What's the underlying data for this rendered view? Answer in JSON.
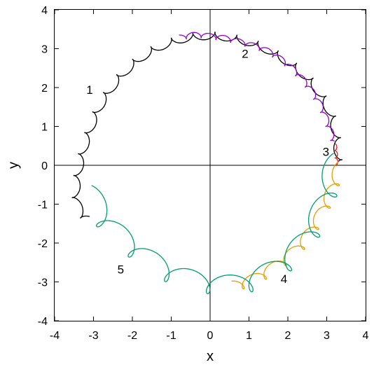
{
  "chart_data": {
    "type": "line",
    "title": "",
    "xlabel": "x",
    "ylabel": "y",
    "xlim": [
      -4,
      4
    ],
    "ylim": [
      -4,
      4
    ],
    "x_ticks": [
      -4,
      -3,
      -2,
      -1,
      0,
      1,
      2,
      3,
      4
    ],
    "y_ticks": [
      -4,
      -3,
      -2,
      -1,
      0,
      1,
      2,
      3,
      4
    ],
    "x_tick_labels": [
      "-4",
      "-3",
      "-2",
      "-1",
      "0",
      "1",
      "2",
      "3",
      "4"
    ],
    "y_tick_labels": [
      "-4",
      "-3",
      "-2",
      "-1",
      "0",
      "1",
      "2",
      "3",
      "4"
    ],
    "grid": false,
    "legend": "none",
    "zero_lines": true,
    "series": [
      {
        "name": "1",
        "color": "#000000",
        "loop_radius": 0.1,
        "loop_ratio": 0.9,
        "x": [
          3.3,
          3.25,
          3.05,
          2.6,
          1.95,
          1.2,
          0.4,
          -0.3,
          -0.9,
          -1.5,
          -2.05,
          -2.5,
          -2.85,
          -3.1,
          -3.3,
          -3.42,
          -3.45,
          -3.38,
          -3.25,
          -3.1
        ],
        "y": [
          0.0,
          0.75,
          1.45,
          2.15,
          2.7,
          3.1,
          3.3,
          3.32,
          3.2,
          2.95,
          2.55,
          2.05,
          1.5,
          0.9,
          0.25,
          -0.35,
          -0.8,
          -1.1,
          -1.3,
          -1.42
        ]
      },
      {
        "name": "2",
        "color": "#9400D3",
        "loop_radius": 0.07,
        "loop_ratio": 0.9,
        "x": [
          -0.8,
          -0.4,
          0.0,
          0.45,
          0.95,
          1.45,
          1.95,
          2.4,
          2.8,
          3.05,
          3.2
        ],
        "y": [
          3.28,
          3.35,
          3.32,
          3.25,
          3.12,
          2.95,
          2.62,
          2.18,
          1.6,
          1.0,
          0.55
        ]
      },
      {
        "name": "3",
        "color": "#E41A1C",
        "loop_radius": 0.035,
        "loop_ratio": 0.9,
        "x": [
          3.22,
          3.24,
          3.25,
          3.24
        ],
        "y": [
          0.52,
          0.3,
          0.1,
          -0.05
        ]
      },
      {
        "name": "4",
        "color": "#E69F00",
        "loop_radius": 0.14,
        "loop_ratio": 0.7,
        "x": [
          0.55,
          1.1,
          1.7,
          2.3,
          2.75,
          3.05,
          3.2,
          3.28,
          3.3
        ],
        "y": [
          -3.12,
          -2.95,
          -2.6,
          -2.1,
          -1.45,
          -0.85,
          -0.45,
          -0.2,
          -0.05
        ]
      },
      {
        "name": "5",
        "color": "#009E73",
        "loop_radius": 0.26,
        "loop_ratio": 0.65,
        "x": [
          -3.05,
          -2.65,
          -2.0,
          -1.25,
          -0.5,
          0.3,
          0.95,
          1.55,
          2.05,
          2.5,
          2.8,
          3.0,
          3.12,
          3.18
        ],
        "y": [
          -0.78,
          -1.5,
          -2.1,
          -2.65,
          -2.95,
          -3.08,
          -3.02,
          -2.75,
          -2.4,
          -1.85,
          -1.3,
          -0.75,
          -0.35,
          0.05
        ]
      }
    ],
    "annotations": [
      {
        "text": "1",
        "x": -3.1,
        "y": 1.95
      },
      {
        "text": "2",
        "x": 0.9,
        "y": 2.87
      },
      {
        "text": "3",
        "x": 2.98,
        "y": 0.35
      },
      {
        "text": "4",
        "x": 1.9,
        "y": -2.92
      },
      {
        "text": "5",
        "x": -2.3,
        "y": -2.68
      }
    ]
  }
}
